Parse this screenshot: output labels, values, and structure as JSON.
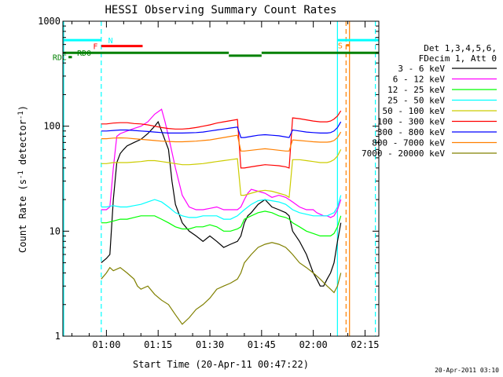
{
  "chart_data": {
    "type": "line",
    "title": "HESSI Observing Summary Count Rates",
    "xlabel": "Start Time (20-Apr-11 00:47:22)",
    "ylabel_main": "Count Rate (s",
    "ylabel_sup": "-1",
    "ylabel_mid": " detector",
    "ylabel_sup2": "-1",
    "ylabel_end": ")",
    "y_scale": "log",
    "ylim": [
      1,
      1000
    ],
    "xlim_minutes": [
      47.37,
      139.0
    ],
    "x_ticks": [
      {
        "label": "01:00",
        "minutes": 60
      },
      {
        "label": "01:15",
        "minutes": 75
      },
      {
        "label": "01:30",
        "minutes": 90
      },
      {
        "label": "01:45",
        "minutes": 105
      },
      {
        "label": "02:00",
        "minutes": 120
      },
      {
        "label": "02:15",
        "minutes": 135
      }
    ],
    "y_ticks": [
      {
        "label": "1",
        "value": 1
      },
      {
        "label": "10",
        "value": 10
      },
      {
        "label": "100",
        "value": 100
      },
      {
        "label": "1000",
        "value": 1000
      }
    ],
    "legend_placement": "right",
    "legend_header": [
      "Det 1,3,4,5,6,",
      "FDecim 1, Att 0"
    ],
    "series": [
      {
        "name": "3 - 6 keV",
        "color": "#000000",
        "x": [
          58.5,
          60,
          61,
          62,
          63,
          64,
          65,
          66,
          68,
          70,
          72,
          74,
          75,
          76,
          78,
          79,
          80,
          82,
          84,
          86,
          88,
          90,
          92,
          94,
          96,
          98,
          99,
          100,
          101,
          102,
          104,
          106,
          108,
          110,
          112,
          113,
          114,
          116,
          118,
          120,
          121,
          122,
          123,
          124,
          125,
          126,
          127,
          128
        ],
        "y": [
          5,
          5.5,
          6,
          20,
          45,
          55,
          60,
          65,
          70,
          75,
          85,
          100,
          110,
          90,
          60,
          30,
          18,
          12,
          10,
          9,
          8,
          9,
          8,
          7,
          7.5,
          8,
          9,
          12,
          14,
          15,
          18,
          20,
          17,
          16,
          15,
          14,
          10,
          8,
          6,
          4,
          3.5,
          3,
          3,
          3.5,
          4,
          5,
          8,
          12
        ]
      },
      {
        "name": "6 - 12 keV",
        "color": "#ff00ff",
        "x": [
          58.5,
          60,
          61,
          62,
          63,
          64,
          66,
          68,
          70,
          72,
          74,
          76,
          77,
          78,
          80,
          82,
          84,
          86,
          88,
          90,
          92,
          94,
          96,
          98,
          99,
          100,
          101,
          102,
          104,
          106,
          108,
          110,
          112,
          113,
          114,
          116,
          118,
          120,
          121,
          122,
          123,
          124,
          125,
          126,
          127,
          128
        ],
        "y": [
          16,
          16,
          17,
          40,
          80,
          85,
          90,
          95,
          100,
          110,
          130,
          145,
          110,
          80,
          40,
          22,
          17,
          16,
          16,
          16.5,
          17,
          16,
          16,
          16,
          17,
          20,
          23,
          25,
          24,
          23,
          21,
          22,
          21,
          20,
          19,
          17,
          16,
          16,
          15,
          14.5,
          14,
          14,
          13.5,
          14,
          16,
          20
        ]
      },
      {
        "name": "12 - 25 keV",
        "color": "#00ff00",
        "x": [
          58.5,
          60,
          62,
          64,
          66,
          68,
          70,
          72,
          74,
          76,
          78,
          80,
          82,
          84,
          86,
          88,
          90,
          92,
          94,
          96,
          98,
          99,
          100,
          102,
          104,
          106,
          108,
          110,
          112,
          113,
          114,
          116,
          118,
          120,
          122,
          124,
          125,
          126,
          127,
          128
        ],
        "y": [
          12,
          12,
          12.5,
          13,
          13,
          13.5,
          14,
          14,
          14,
          13,
          12,
          11,
          10.5,
          10.5,
          11,
          11,
          11.5,
          11,
          10,
          10,
          10.5,
          11,
          13,
          14,
          15,
          15.5,
          15,
          14,
          13.5,
          13,
          12,
          11,
          10,
          9.5,
          9,
          9,
          9,
          9.5,
          11,
          14
        ]
      },
      {
        "name": "25 - 50 keV",
        "color": "#00ffff",
        "x": [
          58.5,
          60,
          62,
          64,
          66,
          68,
          70,
          72,
          74,
          76,
          78,
          80,
          82,
          84,
          86,
          88,
          90,
          92,
          94,
          96,
          98,
          99,
          100,
          102,
          104,
          106,
          108,
          110,
          112,
          113,
          114,
          116,
          118,
          120,
          122,
          124,
          125,
          126,
          127,
          128
        ],
        "y": [
          17,
          17,
          17.5,
          17,
          17,
          17.5,
          18,
          19,
          20,
          19,
          17,
          15,
          14,
          13.5,
          13.5,
          14,
          14,
          14,
          13,
          13,
          14,
          15,
          16,
          18,
          19.5,
          20,
          19.5,
          19,
          18,
          17,
          16,
          15,
          14.5,
          14,
          14,
          14,
          14.5,
          15,
          17,
          22
        ]
      },
      {
        "name": "50 - 100 keV",
        "color": "#cccc00",
        "x": [
          58.5,
          60,
          62,
          64,
          66,
          68,
          70,
          72,
          74,
          76,
          78,
          80,
          82,
          84,
          86,
          88,
          90,
          92,
          94,
          96,
          98,
          99,
          100,
          102,
          104,
          106,
          108,
          110,
          112,
          113,
          114,
          116,
          118,
          120,
          122,
          124,
          125,
          126,
          127,
          128
        ],
        "y": [
          44,
          44,
          45,
          45,
          45,
          45.5,
          46,
          47,
          47,
          46,
          45,
          44,
          43,
          43,
          43.5,
          44,
          45,
          46,
          47,
          48,
          49,
          22,
          22,
          23,
          24,
          24.5,
          24,
          23,
          22,
          21,
          48,
          48,
          47,
          46,
          45,
          45,
          46,
          48,
          52,
          60
        ]
      },
      {
        "name": "100 - 300 keV",
        "color": "#ff0000",
        "x": [
          58.5,
          60,
          62,
          64,
          66,
          68,
          70,
          72,
          74,
          76,
          78,
          80,
          82,
          84,
          86,
          88,
          90,
          92,
          94,
          96,
          98,
          99,
          100,
          102,
          104,
          106,
          108,
          110,
          112,
          113,
          114,
          116,
          118,
          120,
          122,
          124,
          125,
          126,
          127,
          128
        ],
        "y": [
          105,
          105,
          107,
          108,
          108,
          106,
          105,
          103,
          100,
          97,
          95,
          94,
          94,
          95,
          97,
          100,
          103,
          107,
          110,
          113,
          116,
          40,
          40,
          41,
          42,
          43,
          42.5,
          42,
          41,
          40,
          120,
          118,
          115,
          112,
          110,
          110,
          112,
          117,
          125,
          140
        ]
      },
      {
        "name": "300 - 800 keV",
        "color": "#0000ff",
        "x": [
          58.5,
          60,
          62,
          64,
          66,
          68,
          70,
          72,
          74,
          76,
          78,
          80,
          82,
          84,
          86,
          88,
          90,
          92,
          94,
          96,
          98,
          99,
          100,
          102,
          104,
          106,
          108,
          110,
          112,
          113,
          114,
          116,
          118,
          120,
          122,
          124,
          125,
          126,
          127,
          128
        ],
        "y": [
          90,
          90,
          91,
          92,
          92,
          91,
          90,
          89,
          88,
          87,
          86,
          86,
          86,
          86.5,
          87,
          88,
          90,
          92,
          94,
          96,
          98,
          78,
          78,
          80,
          82,
          83,
          82,
          81,
          79,
          78,
          92,
          90,
          88,
          87,
          86,
          86,
          87,
          90,
          97,
          110
        ]
      },
      {
        "name": "800 - 7000 keV",
        "color": "#ff8000",
        "x": [
          58.5,
          60,
          62,
          64,
          66,
          68,
          70,
          72,
          74,
          76,
          78,
          80,
          82,
          84,
          86,
          88,
          90,
          92,
          94,
          96,
          98,
          99,
          100,
          102,
          104,
          106,
          108,
          110,
          112,
          113,
          114,
          116,
          118,
          120,
          122,
          124,
          125,
          126,
          127,
          128
        ],
        "y": [
          76,
          76,
          77,
          77.5,
          77,
          76,
          75,
          74,
          73,
          72,
          71.5,
          71,
          71,
          71.5,
          72,
          73,
          74,
          76,
          78,
          80,
          82,
          58,
          58,
          59,
          60,
          61,
          60,
          59,
          58,
          58,
          74,
          73,
          72,
          71,
          70.5,
          70.5,
          71,
          73,
          78,
          88
        ]
      },
      {
        "name": "7000 - 20000 keV",
        "color": "#808000",
        "x": [
          58.5,
          60,
          61,
          62,
          64,
          66,
          68,
          69,
          70,
          72,
          74,
          76,
          78,
          80,
          82,
          84,
          86,
          88,
          90,
          92,
          94,
          96,
          98,
          99,
          100,
          102,
          104,
          106,
          108,
          110,
          112,
          113,
          114,
          116,
          118,
          120,
          122,
          124,
          125,
          126,
          127,
          128
        ],
        "y": [
          3.5,
          4,
          4.5,
          4.2,
          4.5,
          4,
          3.5,
          3,
          2.8,
          3,
          2.5,
          2.2,
          2,
          1.6,
          1.3,
          1.5,
          1.8,
          2,
          2.3,
          2.8,
          3,
          3.2,
          3.5,
          4,
          5,
          6,
          7,
          7.5,
          7.8,
          7.5,
          7,
          6.5,
          6,
          5,
          4.5,
          4,
          3.5,
          3,
          2.8,
          2.6,
          3,
          4
        ]
      }
    ],
    "state_bars": [
      {
        "label": "N",
        "color": "#00ffff",
        "segments": [
          [
            47.37,
            58.5
          ],
          [
            127.0,
            139.0
          ]
        ],
        "value": 660
      },
      {
        "label": "F",
        "color": "#ff0000",
        "segments": [
          [
            58.5,
            70.5
          ]
        ],
        "value": 580
      },
      {
        "label": "RD0",
        "color": "#008000",
        "segments": [
          [
            47.5,
            95.5
          ],
          [
            105.0,
            139.0
          ]
        ],
        "value": 500
      },
      {
        "label": "RD0",
        "color": "#008000",
        "segments": [
          [
            95.5,
            105.0
          ]
        ],
        "value": 470
      },
      {
        "label": "RDC",
        "color": "#008000",
        "segments": [
          [
            49.0,
            50.0
          ]
        ],
        "value": 455
      },
      {
        "label": "S",
        "color": "#ff8000",
        "segments": [
          [
            129.5,
            130.5
          ]
        ],
        "value": 590
      }
    ],
    "vlines": [
      {
        "minutes": 47.6,
        "color": "#00ffff",
        "dashed": false
      },
      {
        "minutes": 58.5,
        "color": "#00ffff",
        "dashed": true
      },
      {
        "minutes": 127.0,
        "color": "#00ffff",
        "dashed": false
      },
      {
        "minutes": 129.5,
        "color": "#ff8000",
        "dashed": true
      },
      {
        "minutes": 130.5,
        "color": "#ff8000",
        "dashed": false
      },
      {
        "minutes": 138.0,
        "color": "#00ffff",
        "dashed": true
      }
    ]
  },
  "footer": {
    "timestamp": "20-Apr-2011 03:10"
  }
}
